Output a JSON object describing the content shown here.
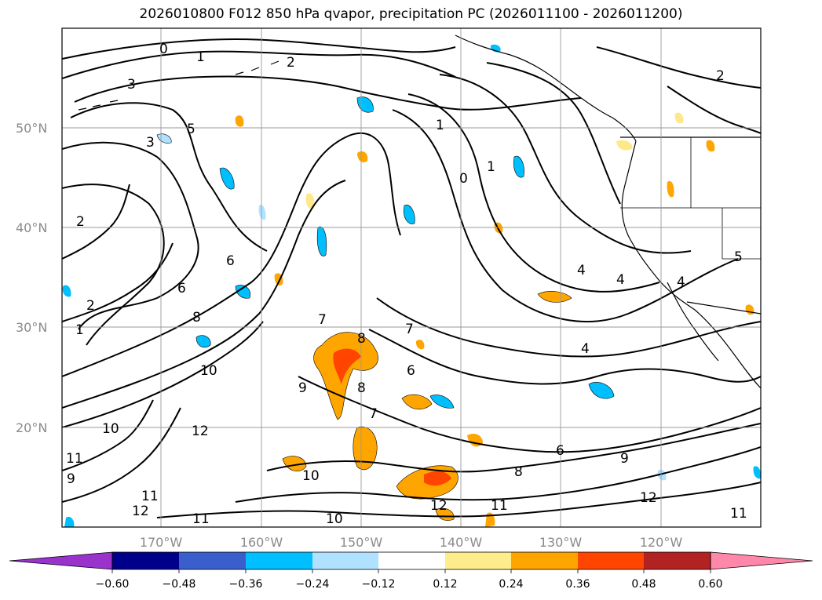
{
  "title": "2026010800 F012 850 hPa qvapor, precipitation PC (2026011100 - 2026011200)",
  "lat_labels": [
    "50°N",
    "40°N",
    "30°N",
    "20°N"
  ],
  "lon_labels": [
    "170°W",
    "160°W",
    "150°W",
    "140°W",
    "130°W",
    "120°W"
  ],
  "contour_labels": [
    "0",
    "1",
    "2",
    "2",
    "2",
    "3",
    "3",
    "5",
    "6",
    "6",
    "8",
    "10",
    "1",
    "2",
    "1",
    "0",
    "1",
    "4",
    "4",
    "4",
    "4",
    "5",
    "7",
    "8",
    "6",
    "7",
    "9",
    "8",
    "7",
    "12",
    "10",
    "11",
    "9",
    "10",
    "12",
    "11",
    "6",
    "11",
    "12",
    "11",
    "9",
    "12",
    "11",
    "10",
    "8"
  ],
  "colorbar": {
    "ticks": [
      "−0.60",
      "−0.48",
      "−0.36",
      "−0.24",
      "−0.12",
      "0.12",
      "0.24",
      "0.36",
      "0.48",
      "0.60"
    ],
    "colors": {
      "under": "#9933cc",
      "bins": [
        "#00008b",
        "#3a5fcd",
        "#00bfff",
        "#b0e2ff",
        "#ffffff",
        "#ffec8b",
        "#ffa500",
        "#ff4500",
        "#b22222",
        "#ff88aa"
      ],
      "over": "#ff88aa"
    }
  }
}
